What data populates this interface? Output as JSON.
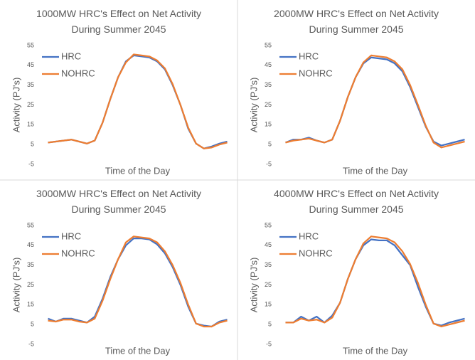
{
  "chart_data": [
    {
      "type": "line",
      "title": "1000MW HRC's Effect on Net Activity During Summer 2045",
      "xlabel": "Time of the Day",
      "ylabel": "Activity (PJ's)",
      "ylim": [
        -5,
        55
      ],
      "yticks": [
        -5,
        5,
        15,
        25,
        35,
        45,
        55
      ],
      "legend": "upper left",
      "series": [
        {
          "name": "HRC",
          "color": "#4472c4",
          "values": [
            6,
            6.5,
            7,
            7.5,
            6.5,
            5.5,
            7,
            16,
            28,
            39,
            47,
            50,
            49.5,
            49,
            47,
            43,
            35,
            25,
            13,
            5.5,
            3,
            4,
            5.5,
            6.5
          ]
        },
        {
          "name": "NOHRC",
          "color": "#ed7d31",
          "values": [
            6,
            6.5,
            7,
            7.5,
            6.5,
            5.5,
            7,
            16,
            28,
            39,
            46.5,
            50.5,
            50,
            49.5,
            47.5,
            43.5,
            35.5,
            25,
            13.5,
            5.5,
            3,
            3.5,
            5,
            6
          ]
        }
      ]
    },
    {
      "type": "line",
      "title": "2000MW HRC's Effect on Net Activity During Summer 2045",
      "xlabel": "Time of the Day",
      "ylabel": "Activity (PJ's)",
      "ylim": [
        -5,
        55
      ],
      "yticks": [
        -5,
        5,
        15,
        25,
        35,
        45,
        55
      ],
      "legend": "upper left",
      "series": [
        {
          "name": "HRC",
          "color": "#4472c4",
          "values": [
            6,
            7.5,
            7.5,
            8.5,
            7,
            6,
            7.5,
            17,
            29,
            39,
            46,
            49,
            48.5,
            48,
            46,
            42,
            34,
            24,
            14,
            6.5,
            4.5,
            5.5,
            6.5,
            7.5
          ]
        },
        {
          "name": "NOHRC",
          "color": "#ed7d31",
          "values": [
            6,
            7,
            7.5,
            8,
            7,
            6,
            7.5,
            17,
            29,
            39,
            46.5,
            50,
            49.5,
            49,
            47,
            43,
            35,
            25,
            14.5,
            6,
            3.5,
            4.5,
            5.5,
            6.5
          ]
        }
      ]
    },
    {
      "type": "line",
      "title": "3000MW HRC's Effect on Net Activity During Summer 2045",
      "xlabel": "Time of the Day",
      "ylabel": "Activity (PJ's)",
      "ylim": [
        -5,
        55
      ],
      "yticks": [
        -5,
        5,
        15,
        25,
        35,
        45,
        55
      ],
      "legend": "upper left",
      "series": [
        {
          "name": "HRC",
          "color": "#4472c4",
          "values": [
            8,
            6.5,
            8,
            8,
            7,
            6,
            9,
            18,
            29,
            38,
            45,
            48.5,
            48.5,
            48,
            45.5,
            41,
            34,
            25,
            14,
            5.5,
            4.5,
            4,
            6.5,
            7.5
          ]
        },
        {
          "name": "NOHRC",
          "color": "#ed7d31",
          "values": [
            7,
            6.5,
            7.5,
            7.5,
            6.5,
            6,
            8,
            17,
            28,
            38,
            46.5,
            49.5,
            49,
            48.5,
            46.5,
            42,
            35,
            26,
            15,
            5.5,
            4,
            4,
            6,
            7
          ]
        }
      ]
    },
    {
      "type": "line",
      "title": "4000MW HRC's Effect on Net Activity During Summer 2045",
      "xlabel": "Time of the Day",
      "ylabel": "Activity (PJ's)",
      "ylim": [
        -5,
        55
      ],
      "yticks": [
        -5,
        5,
        15,
        25,
        35,
        45,
        55
      ],
      "legend": "upper left",
      "series": [
        {
          "name": "HRC",
          "color": "#4472c4",
          "values": [
            6,
            6,
            9,
            7,
            9,
            6,
            9.5,
            16,
            28,
            38,
            45,
            48,
            47.5,
            47.5,
            45,
            40,
            35,
            24,
            14,
            5.5,
            4.5,
            6,
            7,
            8
          ]
        },
        {
          "name": "NOHRC",
          "color": "#ed7d31",
          "values": [
            6,
            6,
            8,
            7,
            7.5,
            6,
            8.5,
            16,
            28,
            38,
            46,
            49.5,
            49,
            48.5,
            46.5,
            42,
            35.5,
            26,
            15,
            5.5,
            4,
            5,
            6,
            7
          ]
        }
      ]
    }
  ]
}
